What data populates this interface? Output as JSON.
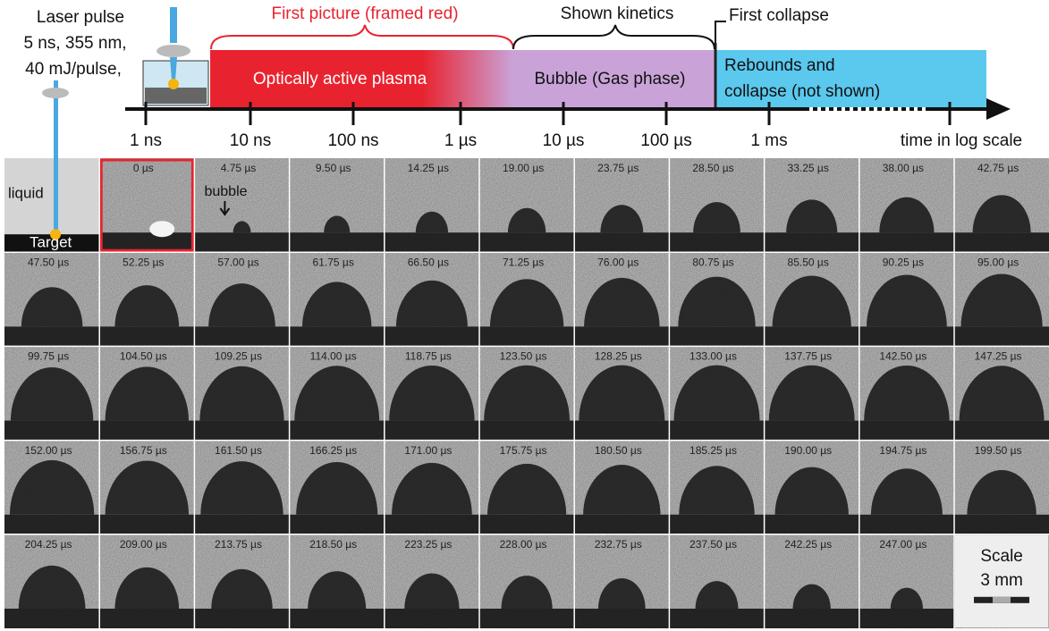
{
  "laser": {
    "lines": [
      "Laser pulse",
      "5 ns, 355 nm,",
      "40 mJ/pulse,"
    ]
  },
  "timeline": {
    "braces": [
      "First picture (framed red)",
      "Shown kinetics",
      "First collapse"
    ],
    "segments": [
      "Optically active plasma",
      "Bubble (Gas phase)",
      [
        "Rebounds and",
        "collapse (not shown)"
      ]
    ],
    "ticks": [
      "1 ns",
      "10 ns",
      "100 ns",
      "1 µs",
      "10 µs",
      "100 µs",
      "1 ms"
    ],
    "axis_label": "time in log scale"
  },
  "frames": {
    "labels": [
      "liquid",
      "Target",
      "bubble"
    ],
    "times": [
      "0 µs",
      "4.75 µs",
      "9.50 µs",
      "14.25 µs",
      "19.00 µs",
      "23.75 µs",
      "28.50 µs",
      "33.25 µs",
      "38.00 µs",
      "42.75 µs",
      "47.50 µs",
      "52.25 µs",
      "57.00 µs",
      "61.75 µs",
      "66.50 µs",
      "71.25 µs",
      "76.00 µs",
      "80.75 µs",
      "85.50 µs",
      "90.25 µs",
      "95.00 µs",
      "99.75 µs",
      "104.50 µs",
      "109.25 µs",
      "114.00 µs",
      "118.75 µs",
      "123.50 µs",
      "128.25 µs",
      "133.00 µs",
      "137.75 µs",
      "142.50 µs",
      "147.25 µs",
      "152.00 µs",
      "156.75 µs",
      "161.50 µs",
      "166.25 µs",
      "171.00 µs",
      "175.75 µs",
      "180.50 µs",
      "185.25 µs",
      "190.00 µs",
      "194.75 µs",
      "199.50 µs",
      "204.25 µs",
      "209.00 µs",
      "213.75 µs",
      "218.50 µs",
      "223.25 µs",
      "228.00 µs",
      "232.75 µs",
      "237.50 µs",
      "242.25 µs",
      "247.00 µs"
    ]
  },
  "scale": {
    "title": "Scale",
    "length": "3 mm"
  }
}
